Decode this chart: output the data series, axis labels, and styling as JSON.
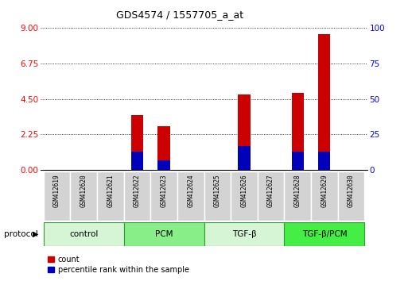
{
  "title": "GDS4574 / 1557705_a_at",
  "samples": [
    "GSM412619",
    "GSM412620",
    "GSM412621",
    "GSM412622",
    "GSM412623",
    "GSM412624",
    "GSM412625",
    "GSM412626",
    "GSM412627",
    "GSM412628",
    "GSM412629",
    "GSM412630"
  ],
  "count_values": [
    0,
    0,
    0,
    3.5,
    2.8,
    0,
    0,
    4.8,
    0,
    4.9,
    8.6,
    0
  ],
  "percentile_values": [
    0,
    0,
    0,
    13.0,
    7.0,
    0,
    0,
    17.0,
    0,
    13.0,
    13.0,
    0
  ],
  "groups": [
    {
      "label": "control",
      "start": 0,
      "end": 3,
      "color": "#d5f5d5"
    },
    {
      "label": "PCM",
      "start": 3,
      "end": 6,
      "color": "#88ee88"
    },
    {
      "label": "TGF-β",
      "start": 6,
      "end": 9,
      "color": "#d5f5d5"
    },
    {
      "label": "TGF-β/PCM",
      "start": 9,
      "end": 12,
      "color": "#44ee44"
    }
  ],
  "ylim_left": [
    0,
    9
  ],
  "ylim_right": [
    0,
    100
  ],
  "yticks_left": [
    0,
    2.25,
    4.5,
    6.75,
    9
  ],
  "yticks_right": [
    0,
    25,
    50,
    75,
    100
  ],
  "bar_color_red": "#cc0000",
  "bar_color_blue": "#0000bb",
  "bar_width": 0.45,
  "bg_color": "#ffffff",
  "legend_count": "count",
  "legend_percentile": "percentile rank within the sample",
  "protocol_label": "protocol"
}
